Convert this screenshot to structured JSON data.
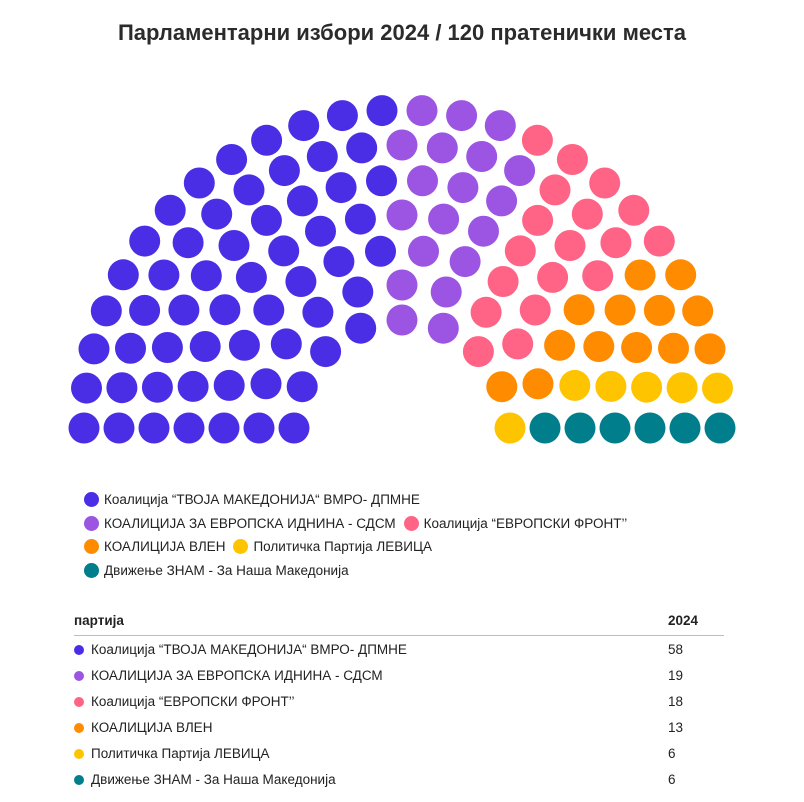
{
  "chart_data": {
    "type": "parliament",
    "title": "Парламентарни избори 2024 / 120 пратенички места",
    "total_seats": 120,
    "series": [
      {
        "name": "Коалиција “ТВОЈА МАКЕДОНИЈА“ ВМРО- ДПМНЕ",
        "value": 58,
        "color": "#4a2ee6"
      },
      {
        "name": "КОАЛИЦИЈА ЗА ЕВРОПСКА ИДНИНА - СДСМ",
        "value": 19,
        "color": "#9b55e2"
      },
      {
        "name": "Коалиција “ЕВРОПСКИ ФРОНТ’’",
        "value": 18,
        "color": "#ff6385"
      },
      {
        "name": "КОАЛИЦИЈА ВЛЕН",
        "value": 13,
        "color": "#ff8c00"
      },
      {
        "name": "Политичка Партија ЛЕВИЦА",
        "value": 6,
        "color": "#ffc400"
      },
      {
        "name": "Движење ЗНАМ - За Наша Македонија",
        "value": 6,
        "color": "#007e8c"
      }
    ]
  },
  "table": {
    "col_party": "партија",
    "col_year": "2024"
  }
}
